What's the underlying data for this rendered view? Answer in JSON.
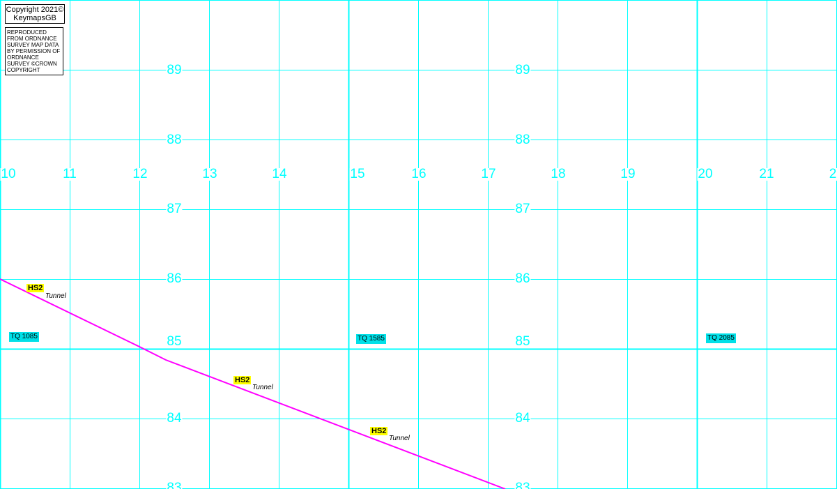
{
  "copyright": {
    "line1": "Copyright 2021©",
    "line2": "KeymapsGB"
  },
  "reproduced": "REPRODUCED FROM ORDNANCE SURVEY MAP DATA BY PERMISSION OF ORDNANCE SURVEY ©CROWN COPYRIGHT",
  "colors": {
    "grid": "#00ffff",
    "route": "#ff00ff",
    "hs2_bg": "#ffff00",
    "tq_bg": "#00e0e8"
  },
  "eastings": [
    "10",
    "11",
    "12",
    "13",
    "14",
    "15",
    "16",
    "17",
    "18",
    "19",
    "20",
    "21",
    "2"
  ],
  "northings": [
    "89",
    "88",
    "87",
    "86",
    "85",
    "84",
    "83"
  ],
  "grid_squares": [
    "TQ 1085",
    "TQ 1585",
    "TQ 2085"
  ],
  "route": {
    "name": "HS2",
    "type": "Tunnel"
  }
}
